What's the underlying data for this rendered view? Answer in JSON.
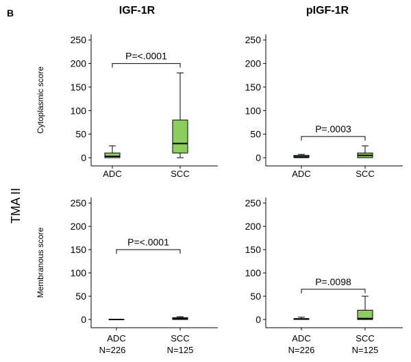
{
  "figure": {
    "panel_label": "B",
    "col_titles": [
      "IGF-1R",
      "pIGF-1R"
    ],
    "row_label": "TMA II",
    "n_labels": [
      "N=226",
      "N=125"
    ]
  },
  "colors": {
    "box_fill": "#8ccf5c",
    "box_stroke": "#000000",
    "axis": "#000000"
  },
  "chart_data": [
    {
      "type": "box",
      "title": "IGF-1R",
      "ylabel": "Cytoplasmic score",
      "categories": [
        "ADC",
        "SCC"
      ],
      "ylim": [
        0,
        250
      ],
      "yticks": [
        0,
        50,
        100,
        150,
        200,
        250
      ],
      "boxes": [
        {
          "category": "ADC",
          "min": 0,
          "q1": 0,
          "median": 3,
          "q3": 10,
          "max": 25
        },
        {
          "category": "SCC",
          "min": 0,
          "q1": 10,
          "median": 30,
          "q3": 80,
          "max": 180
        }
      ],
      "annotation": {
        "text": "P=<.0001",
        "y": 200
      }
    },
    {
      "type": "box",
      "title": "pIGF-1R",
      "ylabel": "",
      "categories": [
        "ADC",
        "SCC"
      ],
      "ylim": [
        0,
        250
      ],
      "yticks": [
        0,
        50,
        100,
        150,
        200,
        250
      ],
      "boxes": [
        {
          "category": "ADC",
          "min": 0,
          "q1": 0,
          "median": 2,
          "q3": 5,
          "max": 7
        },
        {
          "category": "SCC",
          "min": 0,
          "q1": 0,
          "median": 5,
          "q3": 10,
          "max": 25
        }
      ],
      "annotation": {
        "text": "P=.0003",
        "y": 45
      }
    },
    {
      "type": "box",
      "title": "",
      "ylabel": "Membranous score",
      "categories": [
        "ADC",
        "SCC"
      ],
      "ylim": [
        0,
        250
      ],
      "yticks": [
        0,
        50,
        100,
        150,
        200,
        250
      ],
      "boxes": [
        {
          "category": "ADC",
          "min": 0,
          "q1": 0,
          "median": 0,
          "q3": 0,
          "max": 0
        },
        {
          "category": "SCC",
          "min": 0,
          "q1": 0,
          "median": 2,
          "q3": 4,
          "max": 6
        }
      ],
      "annotation": {
        "text": "P=<.0001",
        "y": 150
      }
    },
    {
      "type": "box",
      "title": "",
      "ylabel": "",
      "categories": [
        "ADC",
        "SCC"
      ],
      "ylim": [
        0,
        250
      ],
      "yticks": [
        0,
        50,
        100,
        150,
        200,
        250
      ],
      "boxes": [
        {
          "category": "ADC",
          "min": 0,
          "q1": 0,
          "median": 1,
          "q3": 2,
          "max": 5
        },
        {
          "category": "SCC",
          "min": 0,
          "q1": 0,
          "median": 2,
          "q3": 20,
          "max": 50
        }
      ],
      "annotation": {
        "text": "P=.0098",
        "y": 65
      }
    }
  ]
}
